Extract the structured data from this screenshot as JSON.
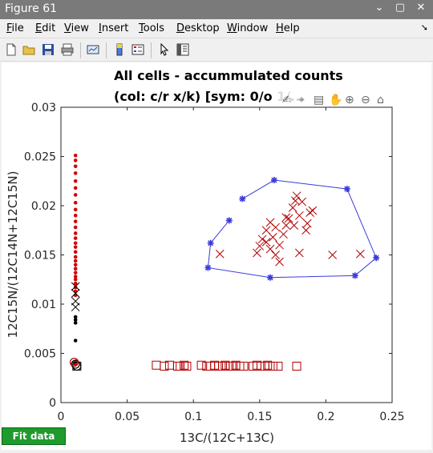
{
  "window": {
    "title": "Figure 61",
    "minimize": "⌄",
    "maximize": "▢",
    "close": "✕"
  },
  "menu": [
    {
      "label": "File",
      "u": "F",
      "rest": "ile"
    },
    {
      "label": "Edit",
      "u": "E",
      "rest": "dit"
    },
    {
      "label": "View",
      "u": "V",
      "rest": "iew"
    },
    {
      "label": "Insert",
      "u": "I",
      "rest": "nsert"
    },
    {
      "label": "Tools",
      "u": "T",
      "rest": "ools"
    },
    {
      "label": "Desktop",
      "u": "D",
      "rest": "esktop"
    },
    {
      "label": "Window",
      "u": "W",
      "rest": "indow"
    },
    {
      "label": "Help",
      "u": "H",
      "rest": "elp"
    }
  ],
  "toolbar_icons": [
    "new-figure-icon",
    "open-file-icon",
    "save-icon",
    "print-icon",
    "link-plot-icon",
    "colorbar-icon",
    "legend-icon",
    "pointer-icon",
    "property-inspector-icon"
  ],
  "axes_toolbar_icons": [
    "brush-icon",
    "data-tip-icon",
    "rotate-icon",
    "pan-hand-icon",
    "zoom-in-icon",
    "zoom-out-icon",
    "home-icon"
  ],
  "fit_button": {
    "label": "Fit data",
    "color": "#1f9a2d"
  },
  "colors": {
    "red": "#d40000",
    "blue": "#3b3bdc",
    "dark_red": "#b00000"
  },
  "chart_data": {
    "type": "scatter",
    "title": "All cells - accummulated counts",
    "subtitle": "(col: c/r x/k) [sym: 0/o 1/...",
    "xlabel": "13C/(12C+13C)",
    "ylabel": "12C15N/(12C14N+12C15N)",
    "xlim": [
      0,
      0.25
    ],
    "ylim": [
      0,
      0.03
    ],
    "xticks": [
      "0",
      "0.05",
      "0.1",
      "0.15",
      "0.2",
      "0.25"
    ],
    "yticks": [
      "0",
      "0.005",
      "0.01",
      "0.015",
      "0.02",
      "0.025",
      "0.03"
    ],
    "grid": false,
    "series": [
      {
        "marker": "dot",
        "color": "#d40000",
        "x": [
          0.011,
          0.011,
          0.011,
          0.011,
          0.011,
          0.011,
          0.011,
          0.011,
          0.011,
          0.011,
          0.011,
          0.011,
          0.011,
          0.011,
          0.011,
          0.011,
          0.011,
          0.011,
          0.011,
          0.011,
          0.011,
          0.011,
          0.011,
          0.011,
          0.011,
          0.011,
          0.011,
          0.011,
          0.011,
          0.011
        ],
        "y": [
          0.0251,
          0.0246,
          0.024,
          0.0233,
          0.0225,
          0.0218,
          0.0211,
          0.0203,
          0.0196,
          0.019,
          0.0184,
          0.0178,
          0.0172,
          0.0167,
          0.0162,
          0.0158,
          0.0153,
          0.0148,
          0.0144,
          0.014,
          0.0136,
          0.0132,
          0.0128,
          0.0125,
          0.0121,
          0.0117,
          0.0113,
          0.0109,
          0.0041,
          0.0039
        ]
      },
      {
        "marker": "dot",
        "color": "#000000",
        "x": [
          0.011,
          0.011,
          0.011,
          0.011
        ],
        "y": [
          0.0087,
          0.0084,
          0.0081,
          0.0063
        ]
      },
      {
        "marker": "x",
        "color": "#000000",
        "x": [
          0.011,
          0.011,
          0.011,
          0.011
        ],
        "y": [
          0.0118,
          0.0111,
          0.0103,
          0.0097
        ]
      },
      {
        "marker": "circle",
        "color": "#000000",
        "x": [
          0.011,
          0.012
        ],
        "y": [
          0.0039,
          0.0037
        ]
      },
      {
        "marker": "square",
        "color": "#000000",
        "x": [
          0.012
        ],
        "y": [
          0.0037
        ]
      },
      {
        "marker": "x",
        "color": "#b00000",
        "x": [
          0.12,
          0.148,
          0.15,
          0.152,
          0.155,
          0.158,
          0.16,
          0.162,
          0.165,
          0.168,
          0.17,
          0.172,
          0.175,
          0.177,
          0.178,
          0.18,
          0.182,
          0.185,
          0.188,
          0.155,
          0.158,
          0.162,
          0.165,
          0.17,
          0.176,
          0.18,
          0.186,
          0.205,
          0.226,
          0.19
        ],
        "y": [
          0.0151,
          0.0152,
          0.0159,
          0.0166,
          0.0163,
          0.0156,
          0.0168,
          0.015,
          0.0143,
          0.0171,
          0.018,
          0.0187,
          0.0198,
          0.0205,
          0.021,
          0.019,
          0.0204,
          0.0175,
          0.0193,
          0.0175,
          0.0183,
          0.0178,
          0.016,
          0.0188,
          0.018,
          0.0152,
          0.0182,
          0.015,
          0.0151,
          0.0195
        ]
      },
      {
        "marker": "square",
        "color": "#b00000",
        "x": [
          0.072,
          0.078,
          0.082,
          0.088,
          0.09,
          0.093,
          0.095,
          0.106,
          0.11,
          0.113,
          0.116,
          0.119,
          0.122,
          0.124,
          0.127,
          0.13,
          0.132,
          0.135,
          0.138,
          0.145,
          0.148,
          0.151,
          0.154,
          0.156,
          0.16,
          0.164,
          0.178
        ],
        "y": [
          0.0038,
          0.0037,
          0.0038,
          0.0037,
          0.0037,
          0.0038,
          0.0037,
          0.0038,
          0.0037,
          0.0037,
          0.0038,
          0.0037,
          0.0037,
          0.0038,
          0.0037,
          0.0037,
          0.0038,
          0.0037,
          0.0037,
          0.0037,
          0.0038,
          0.0037,
          0.0037,
          0.0038,
          0.0037,
          0.0037,
          0.0037
        ]
      },
      {
        "marker": "circle",
        "color": "#b00000",
        "x": [
          0.01
        ],
        "y": [
          0.0041
        ]
      },
      {
        "marker": "star-line",
        "color": "#3b3bdc",
        "x": [
          0.137,
          0.161,
          0.216,
          0.238,
          0.222,
          0.158,
          0.111,
          0.113,
          0.127
        ],
        "y": [
          0.0207,
          0.0226,
          0.0217,
          0.0147,
          0.0129,
          0.0127,
          0.0137,
          0.0162,
          0.0185
        ]
      }
    ]
  }
}
